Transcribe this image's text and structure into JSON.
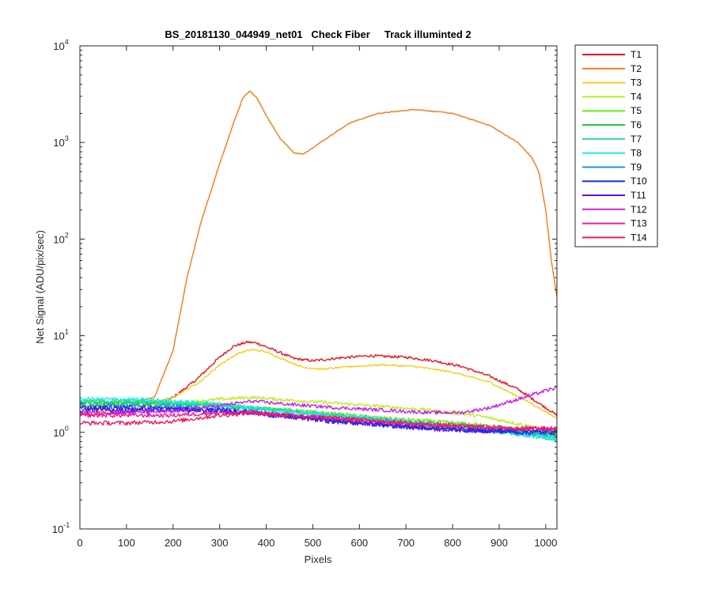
{
  "chart_data": {
    "type": "line",
    "title": "BS_20181130_044949_net01   Check Fiber     Track illuminted 2",
    "xlabel": "Pixels",
    "ylabel": "Net Signal (ADU/pix/sec)",
    "xlim": [
      0,
      1024
    ],
    "ylim": [
      0.1,
      10000
    ],
    "yscale": "log",
    "xticks": [
      "0",
      "100",
      "200",
      "300",
      "400",
      "500",
      "600",
      "700",
      "800",
      "900",
      "1000"
    ],
    "yticks": [
      {
        "base": "10",
        "exp": "-1"
      },
      {
        "base": "10",
        "exp": "0"
      },
      {
        "base": "10",
        "exp": "1"
      },
      {
        "base": "10",
        "exp": "2"
      },
      {
        "base": "10",
        "exp": "3"
      },
      {
        "base": "10",
        "exp": "4"
      }
    ],
    "grid": false,
    "legend_position": "outside-top-right",
    "series": [
      {
        "name": "T1",
        "color": "#e8141e",
        "noise": 0.03,
        "x": [
          0,
          100,
          200,
          250,
          300,
          330,
          360,
          380,
          420,
          460,
          500,
          560,
          620,
          700,
          760,
          820,
          880,
          940,
          1000,
          1024
        ],
        "y": [
          1.5,
          1.6,
          2.3,
          3.5,
          6.0,
          7.8,
          8.6,
          8.4,
          7.0,
          5.8,
          5.5,
          5.9,
          6.2,
          6.0,
          5.5,
          4.8,
          3.8,
          2.8,
          1.8,
          1.5
        ]
      },
      {
        "name": "T2",
        "color": "#f47a14",
        "noise": 0.01,
        "x": [
          0,
          100,
          160,
          200,
          230,
          260,
          300,
          330,
          350,
          365,
          380,
          400,
          430,
          460,
          480,
          500,
          540,
          580,
          640,
          720,
          800,
          880,
          940,
          970,
          985,
          1000,
          1012,
          1024
        ],
        "y": [
          1.8,
          2.0,
          2.3,
          7.0,
          40,
          150,
          600,
          1600,
          2900,
          3400,
          2900,
          1900,
          1100,
          780,
          760,
          880,
          1200,
          1600,
          2000,
          2200,
          2000,
          1500,
          1000,
          700,
          500,
          200,
          60,
          25
        ]
      },
      {
        "name": "T3",
        "color": "#f7ce1c",
        "noise": 0.02,
        "x": [
          0,
          100,
          200,
          260,
          300,
          340,
          370,
          400,
          440,
          480,
          520,
          580,
          650,
          720,
          800,
          880,
          960,
          1024
        ],
        "y": [
          1.6,
          1.7,
          2.3,
          3.4,
          5.0,
          6.6,
          7.2,
          6.8,
          5.6,
          4.7,
          4.5,
          4.8,
          5.0,
          4.8,
          4.2,
          3.3,
          2.1,
          1.4
        ]
      },
      {
        "name": "T4",
        "color": "#b8ee1c",
        "noise": 0.04,
        "x": [
          0,
          100,
          200,
          300,
          370,
          450,
          550,
          650,
          750,
          850,
          950,
          1024
        ],
        "y": [
          1.9,
          1.95,
          2.0,
          2.2,
          2.3,
          2.15,
          2.0,
          1.85,
          1.7,
          1.5,
          1.2,
          1.0
        ]
      },
      {
        "name": "T5",
        "color": "#6ce81a",
        "noise": 0.05,
        "x": [
          0,
          100,
          200,
          300,
          370,
          450,
          550,
          650,
          750,
          850,
          950,
          1024
        ],
        "y": [
          2.0,
          2.0,
          1.95,
          1.9,
          1.8,
          1.7,
          1.55,
          1.4,
          1.3,
          1.2,
          1.05,
          0.95
        ]
      },
      {
        "name": "T6",
        "color": "#1acc3e",
        "noise": 0.05,
        "x": [
          0,
          100,
          200,
          300,
          370,
          450,
          550,
          650,
          750,
          850,
          950,
          1024
        ],
        "y": [
          2.05,
          2.05,
          2.0,
          1.9,
          1.75,
          1.65,
          1.5,
          1.35,
          1.25,
          1.15,
          1.05,
          0.9
        ]
      },
      {
        "name": "T7",
        "color": "#1ed6a8",
        "noise": 0.05,
        "x": [
          0,
          100,
          200,
          300,
          370,
          450,
          550,
          650,
          750,
          850,
          950,
          1024
        ],
        "y": [
          2.1,
          2.1,
          2.05,
          1.9,
          1.8,
          1.65,
          1.5,
          1.35,
          1.2,
          1.1,
          0.95,
          0.85
        ]
      },
      {
        "name": "T8",
        "color": "#1ceae6",
        "noise": 0.05,
        "x": [
          0,
          100,
          200,
          300,
          370,
          450,
          550,
          650,
          750,
          850,
          950,
          1024
        ],
        "y": [
          2.2,
          2.2,
          2.1,
          1.95,
          1.8,
          1.65,
          1.5,
          1.35,
          1.2,
          1.1,
          0.95,
          0.85
        ]
      },
      {
        "name": "T9",
        "color": "#1a96ee",
        "noise": 0.06,
        "x": [
          0,
          100,
          200,
          300,
          370,
          450,
          550,
          650,
          750,
          850,
          950,
          1024
        ],
        "y": [
          1.9,
          1.9,
          1.85,
          1.75,
          1.65,
          1.5,
          1.35,
          1.25,
          1.15,
          1.05,
          1.0,
          0.95
        ]
      },
      {
        "name": "T10",
        "color": "#1232e8",
        "noise": 0.06,
        "x": [
          0,
          100,
          200,
          300,
          370,
          450,
          550,
          650,
          750,
          850,
          950,
          1024
        ],
        "y": [
          1.8,
          1.8,
          1.75,
          1.7,
          1.6,
          1.45,
          1.3,
          1.2,
          1.1,
          1.05,
          1.0,
          1.0
        ]
      },
      {
        "name": "T11",
        "color": "#5a12e6",
        "noise": 0.06,
        "x": [
          0,
          100,
          200,
          300,
          370,
          450,
          550,
          650,
          750,
          850,
          950,
          1024
        ],
        "y": [
          1.7,
          1.7,
          1.7,
          1.65,
          1.6,
          1.45,
          1.3,
          1.2,
          1.1,
          1.05,
          1.05,
          1.05
        ]
      },
      {
        "name": "T12",
        "color": "#ce1ae8",
        "noise": 0.04,
        "x": [
          0,
          100,
          200,
          300,
          370,
          450,
          550,
          650,
          750,
          820,
          880,
          940,
          1000,
          1024
        ],
        "y": [
          1.6,
          1.6,
          1.65,
          1.9,
          2.1,
          1.95,
          1.8,
          1.7,
          1.6,
          1.6,
          1.8,
          2.2,
          2.7,
          2.9
        ]
      },
      {
        "name": "T13",
        "color": "#ee1c9c",
        "noise": 0.05,
        "x": [
          0,
          100,
          200,
          300,
          370,
          450,
          550,
          650,
          750,
          850,
          950,
          1024
        ],
        "y": [
          1.5,
          1.5,
          1.5,
          1.6,
          1.6,
          1.5,
          1.4,
          1.3,
          1.2,
          1.15,
          1.1,
          1.1
        ]
      },
      {
        "name": "T14",
        "color": "#f01a5a",
        "noise": 0.05,
        "x": [
          0,
          100,
          200,
          300,
          370,
          450,
          550,
          650,
          750,
          850,
          950,
          1024
        ],
        "y": [
          1.25,
          1.25,
          1.3,
          1.5,
          1.6,
          1.5,
          1.4,
          1.3,
          1.2,
          1.15,
          1.1,
          1.1
        ]
      }
    ]
  }
}
